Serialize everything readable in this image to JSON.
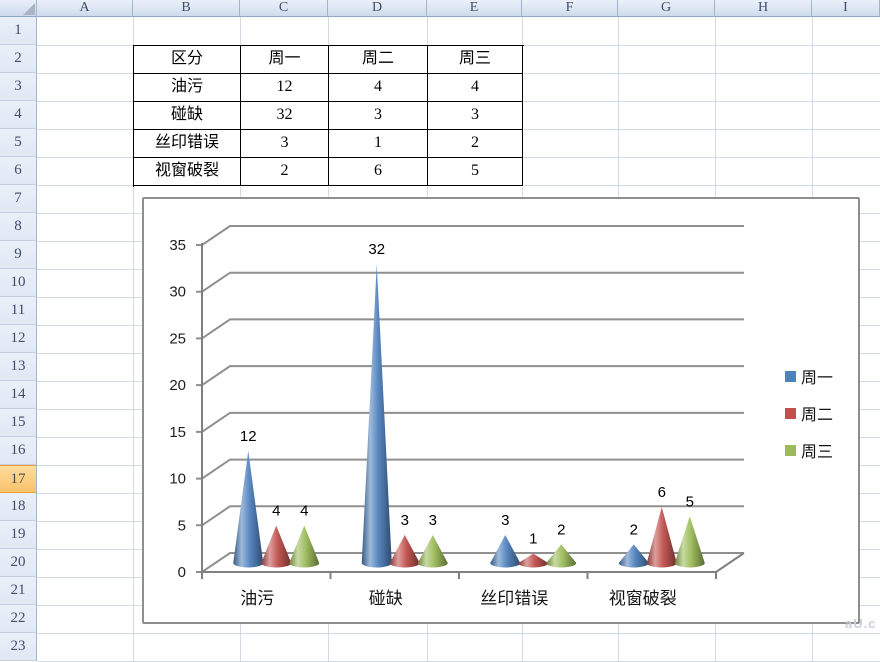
{
  "sheet": {
    "column_headers": [
      "A",
      "B",
      "C",
      "D",
      "E",
      "F",
      "G",
      "H",
      "I"
    ],
    "row_count": 23,
    "selected_row": 17
  },
  "table": {
    "headers": [
      "区分",
      "周一",
      "周二",
      "周三"
    ],
    "rows": [
      {
        "label": "油污",
        "values": [
          "12",
          "4",
          "4"
        ]
      },
      {
        "label": "碰缺",
        "values": [
          "32",
          "3",
          "3"
        ]
      },
      {
        "label": "丝印错误",
        "values": [
          "3",
          "1",
          "2"
        ]
      },
      {
        "label": "视窗破裂",
        "values": [
          "2",
          "6",
          "5"
        ]
      }
    ]
  },
  "chart_data": {
    "type": "bar",
    "subtype": "cone-3d",
    "title": "",
    "categories": [
      "油污",
      "碰缺",
      "丝印错误",
      "视窗破裂"
    ],
    "series": [
      {
        "name": "周一",
        "color": "#4F81BD",
        "values": [
          12,
          32,
          3,
          2
        ]
      },
      {
        "name": "周二",
        "color": "#C0504D",
        "values": [
          4,
          3,
          1,
          6
        ]
      },
      {
        "name": "周三",
        "color": "#9BBB59",
        "values": [
          4,
          3,
          2,
          5
        ]
      }
    ],
    "ylim": [
      0,
      35
    ],
    "ytick_step": 5,
    "yticks": [
      0,
      5,
      10,
      15,
      20,
      25,
      30,
      35
    ],
    "grid": true,
    "legend_position": "right",
    "data_labels": true
  },
  "watermark": "aU.c"
}
